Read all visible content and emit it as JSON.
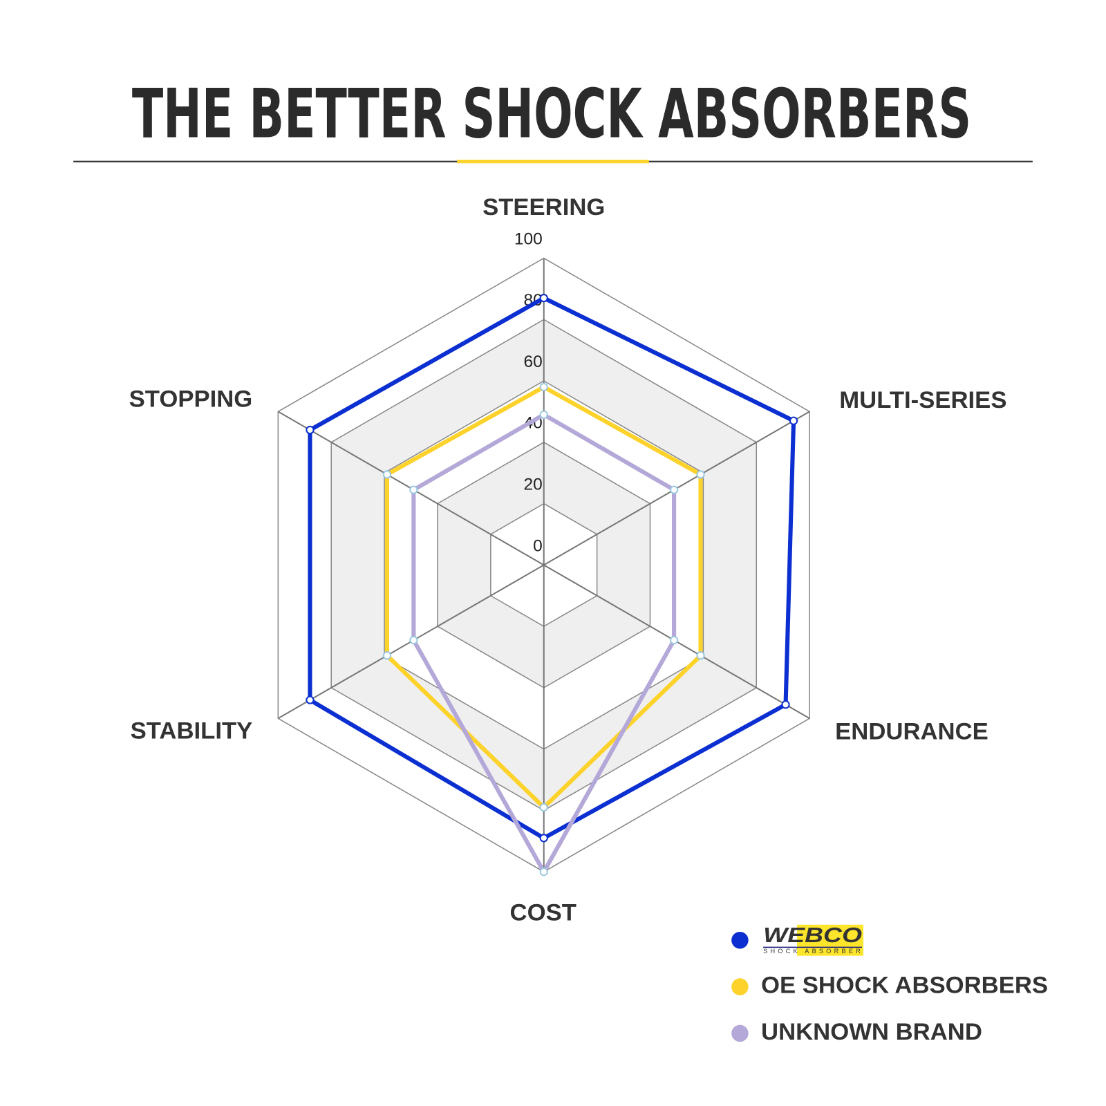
{
  "chart_data": {
    "type": "radar",
    "title": "THE BETTER SHOCK ABSORBERS",
    "categories": [
      "STEERING",
      "MULTI-SERIES",
      "ENDURANCE",
      "COST",
      "STABILITY",
      "STOPPING"
    ],
    "ylim": [
      0,
      100
    ],
    "yticks": [
      0,
      20,
      40,
      60,
      80,
      100
    ],
    "series": [
      {
        "name": "WEBCO",
        "tagline": "SHOCK ABSORBER",
        "color": "#0b2fd0",
        "values": [
          87,
          94,
          91,
          89,
          88,
          88
        ]
      },
      {
        "name": "OE SHOCK ABSORBERS",
        "color": "#fdd22a",
        "values": [
          58,
          59,
          59,
          79,
          59,
          59
        ]
      },
      {
        "name": "UNKNOWN BRAND",
        "color": "#b4a8d8",
        "values": [
          49,
          49,
          49,
          100,
          49,
          49
        ]
      }
    ]
  }
}
